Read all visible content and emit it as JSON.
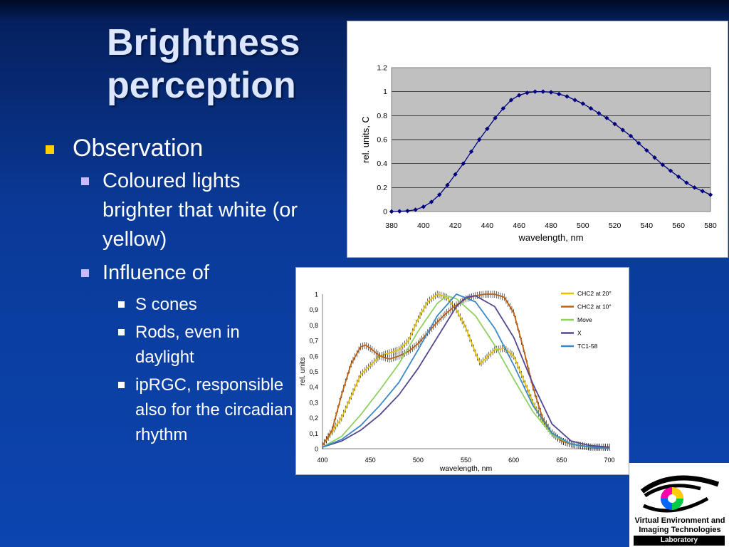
{
  "slide": {
    "title_line1": "Brightness",
    "title_line2": "perception",
    "bullets": {
      "l1": "Observation",
      "l2a": "Coloured lights brighter that white (or yellow)",
      "l2b": "Influence of",
      "l3": [
        "S cones",
        "Rods, even in daylight",
        "ipRGC, responsible also for the circadian rhythm"
      ]
    }
  },
  "logo": {
    "line1": "Virtual Environment and",
    "line2": "Imaging Technologies",
    "line3": "Laboratory"
  },
  "colors": {
    "title": "#dce6ff",
    "bullet_l1": "#ffd000",
    "bullet_l2": "#c9b9ff",
    "chart1_plot_bg": "#c0c0c0",
    "chart1_series": "#000080"
  },
  "chart_data": [
    {
      "type": "line",
      "xlabel": "wavelength, nm",
      "ylabel": "rel. units, C",
      "xlim": [
        380,
        580
      ],
      "ylim": [
        0,
        1.2
      ],
      "xticks": [
        380,
        400,
        420,
        440,
        460,
        480,
        500,
        520,
        540,
        560,
        580
      ],
      "yticks": [
        0,
        0.2,
        0.4,
        0.6,
        0.8,
        1,
        1.2
      ],
      "ytick_labels": [
        "0",
        "0.2",
        "0.4",
        "0.6",
        "0.8",
        "1",
        "1.2"
      ],
      "grid": true,
      "legend": "none",
      "series": [
        {
          "color": "#000080",
          "marker": "diamond",
          "x": [
            380,
            385,
            390,
            395,
            400,
            405,
            410,
            415,
            420,
            425,
            430,
            435,
            440,
            445,
            450,
            455,
            460,
            465,
            470,
            475,
            480,
            485,
            490,
            495,
            500,
            505,
            510,
            515,
            520,
            525,
            530,
            535,
            540,
            545,
            550,
            555,
            560,
            565,
            570,
            575,
            580
          ],
          "y": [
            0,
            0.002,
            0.005,
            0.015,
            0.04,
            0.08,
            0.14,
            0.22,
            0.31,
            0.4,
            0.5,
            0.6,
            0.69,
            0.78,
            0.86,
            0.93,
            0.97,
            0.99,
            1,
            1,
            0.995,
            0.98,
            0.96,
            0.93,
            0.9,
            0.86,
            0.82,
            0.78,
            0.73,
            0.68,
            0.63,
            0.57,
            0.51,
            0.45,
            0.39,
            0.34,
            0.29,
            0.24,
            0.2,
            0.17,
            0.14
          ]
        }
      ]
    },
    {
      "type": "line",
      "xlabel": "wavelength, nm",
      "ylabel": "rel. units",
      "xlim": [
        400,
        700
      ],
      "ylim": [
        0,
        1
      ],
      "xticks": [
        400,
        450,
        500,
        550,
        600,
        650,
        700
      ],
      "yticks": [
        0,
        0.1,
        0.2,
        0.3,
        0.4,
        0.5,
        0.6,
        0.7,
        0.8,
        0.9,
        1
      ],
      "ytick_labels": [
        "0",
        "0,1",
        "0,2",
        "0,3",
        "0,4",
        "0,5",
        "0,6",
        "0,7",
        "0,8",
        "0,9",
        "1"
      ],
      "grid": false,
      "legend": "top-right",
      "series": [
        {
          "name": "CHC2 at 20°",
          "color": "#e8c000",
          "error_bars": true,
          "x": [
            400,
            420,
            440,
            450,
            460,
            470,
            480,
            490,
            500,
            510,
            520,
            530,
            540,
            550,
            560,
            565,
            570,
            580,
            590,
            600,
            610,
            620,
            630,
            640,
            650,
            660,
            670,
            680,
            690,
            700
          ],
          "y": [
            0.02,
            0.2,
            0.48,
            0.54,
            0.6,
            0.62,
            0.64,
            0.7,
            0.84,
            0.95,
            1,
            0.98,
            0.9,
            0.78,
            0.62,
            0.55,
            0.58,
            0.64,
            0.65,
            0.6,
            0.45,
            0.3,
            0.18,
            0.1,
            0.05,
            0.03,
            0.02,
            0.01,
            0.01,
            0.01
          ]
        },
        {
          "name": "CHC2 at 10°",
          "color": "#c06010",
          "error_bars": true,
          "x": [
            400,
            410,
            420,
            430,
            440,
            445,
            450,
            460,
            470,
            480,
            490,
            500,
            510,
            520,
            530,
            540,
            550,
            560,
            570,
            580,
            590,
            600,
            610,
            620,
            630,
            640,
            650,
            660,
            670,
            680,
            690,
            700
          ],
          "y": [
            0.02,
            0.12,
            0.35,
            0.55,
            0.66,
            0.67,
            0.65,
            0.6,
            0.58,
            0.6,
            0.63,
            0.68,
            0.75,
            0.82,
            0.88,
            0.93,
            0.97,
            0.99,
            1,
            1,
            0.98,
            0.88,
            0.65,
            0.4,
            0.2,
            0.1,
            0.05,
            0.03,
            0.02,
            0.01,
            0.01,
            0.01
          ]
        },
        {
          "name": "Move",
          "color": "#90d060",
          "x": [
            400,
            420,
            440,
            460,
            480,
            500,
            520,
            530,
            540,
            560,
            580,
            600,
            620,
            640,
            660,
            680,
            700
          ],
          "y": [
            0.01,
            0.08,
            0.22,
            0.38,
            0.55,
            0.76,
            0.94,
            0.99,
            0.97,
            0.86,
            0.67,
            0.45,
            0.24,
            0.09,
            0.03,
            0.01,
            0
          ]
        },
        {
          "name": "X",
          "color": "#504890",
          "x": [
            400,
            420,
            440,
            460,
            480,
            500,
            520,
            540,
            550,
            560,
            580,
            600,
            620,
            640,
            660,
            680,
            700
          ],
          "y": [
            0.01,
            0.05,
            0.12,
            0.22,
            0.35,
            0.52,
            0.72,
            0.92,
            0.98,
            0.99,
            0.92,
            0.72,
            0.42,
            0.16,
            0.05,
            0.02,
            0.01
          ]
        },
        {
          "name": "TC1-58",
          "color": "#3a8ac8",
          "x": [
            400,
            420,
            440,
            460,
            480,
            500,
            520,
            540,
            560,
            580,
            600,
            620,
            640,
            660,
            680,
            700
          ],
          "y": [
            0.01,
            0.06,
            0.15,
            0.28,
            0.43,
            0.64,
            0.86,
            1,
            0.95,
            0.78,
            0.54,
            0.28,
            0.1,
            0.03,
            0.01,
            0
          ]
        }
      ]
    }
  ]
}
